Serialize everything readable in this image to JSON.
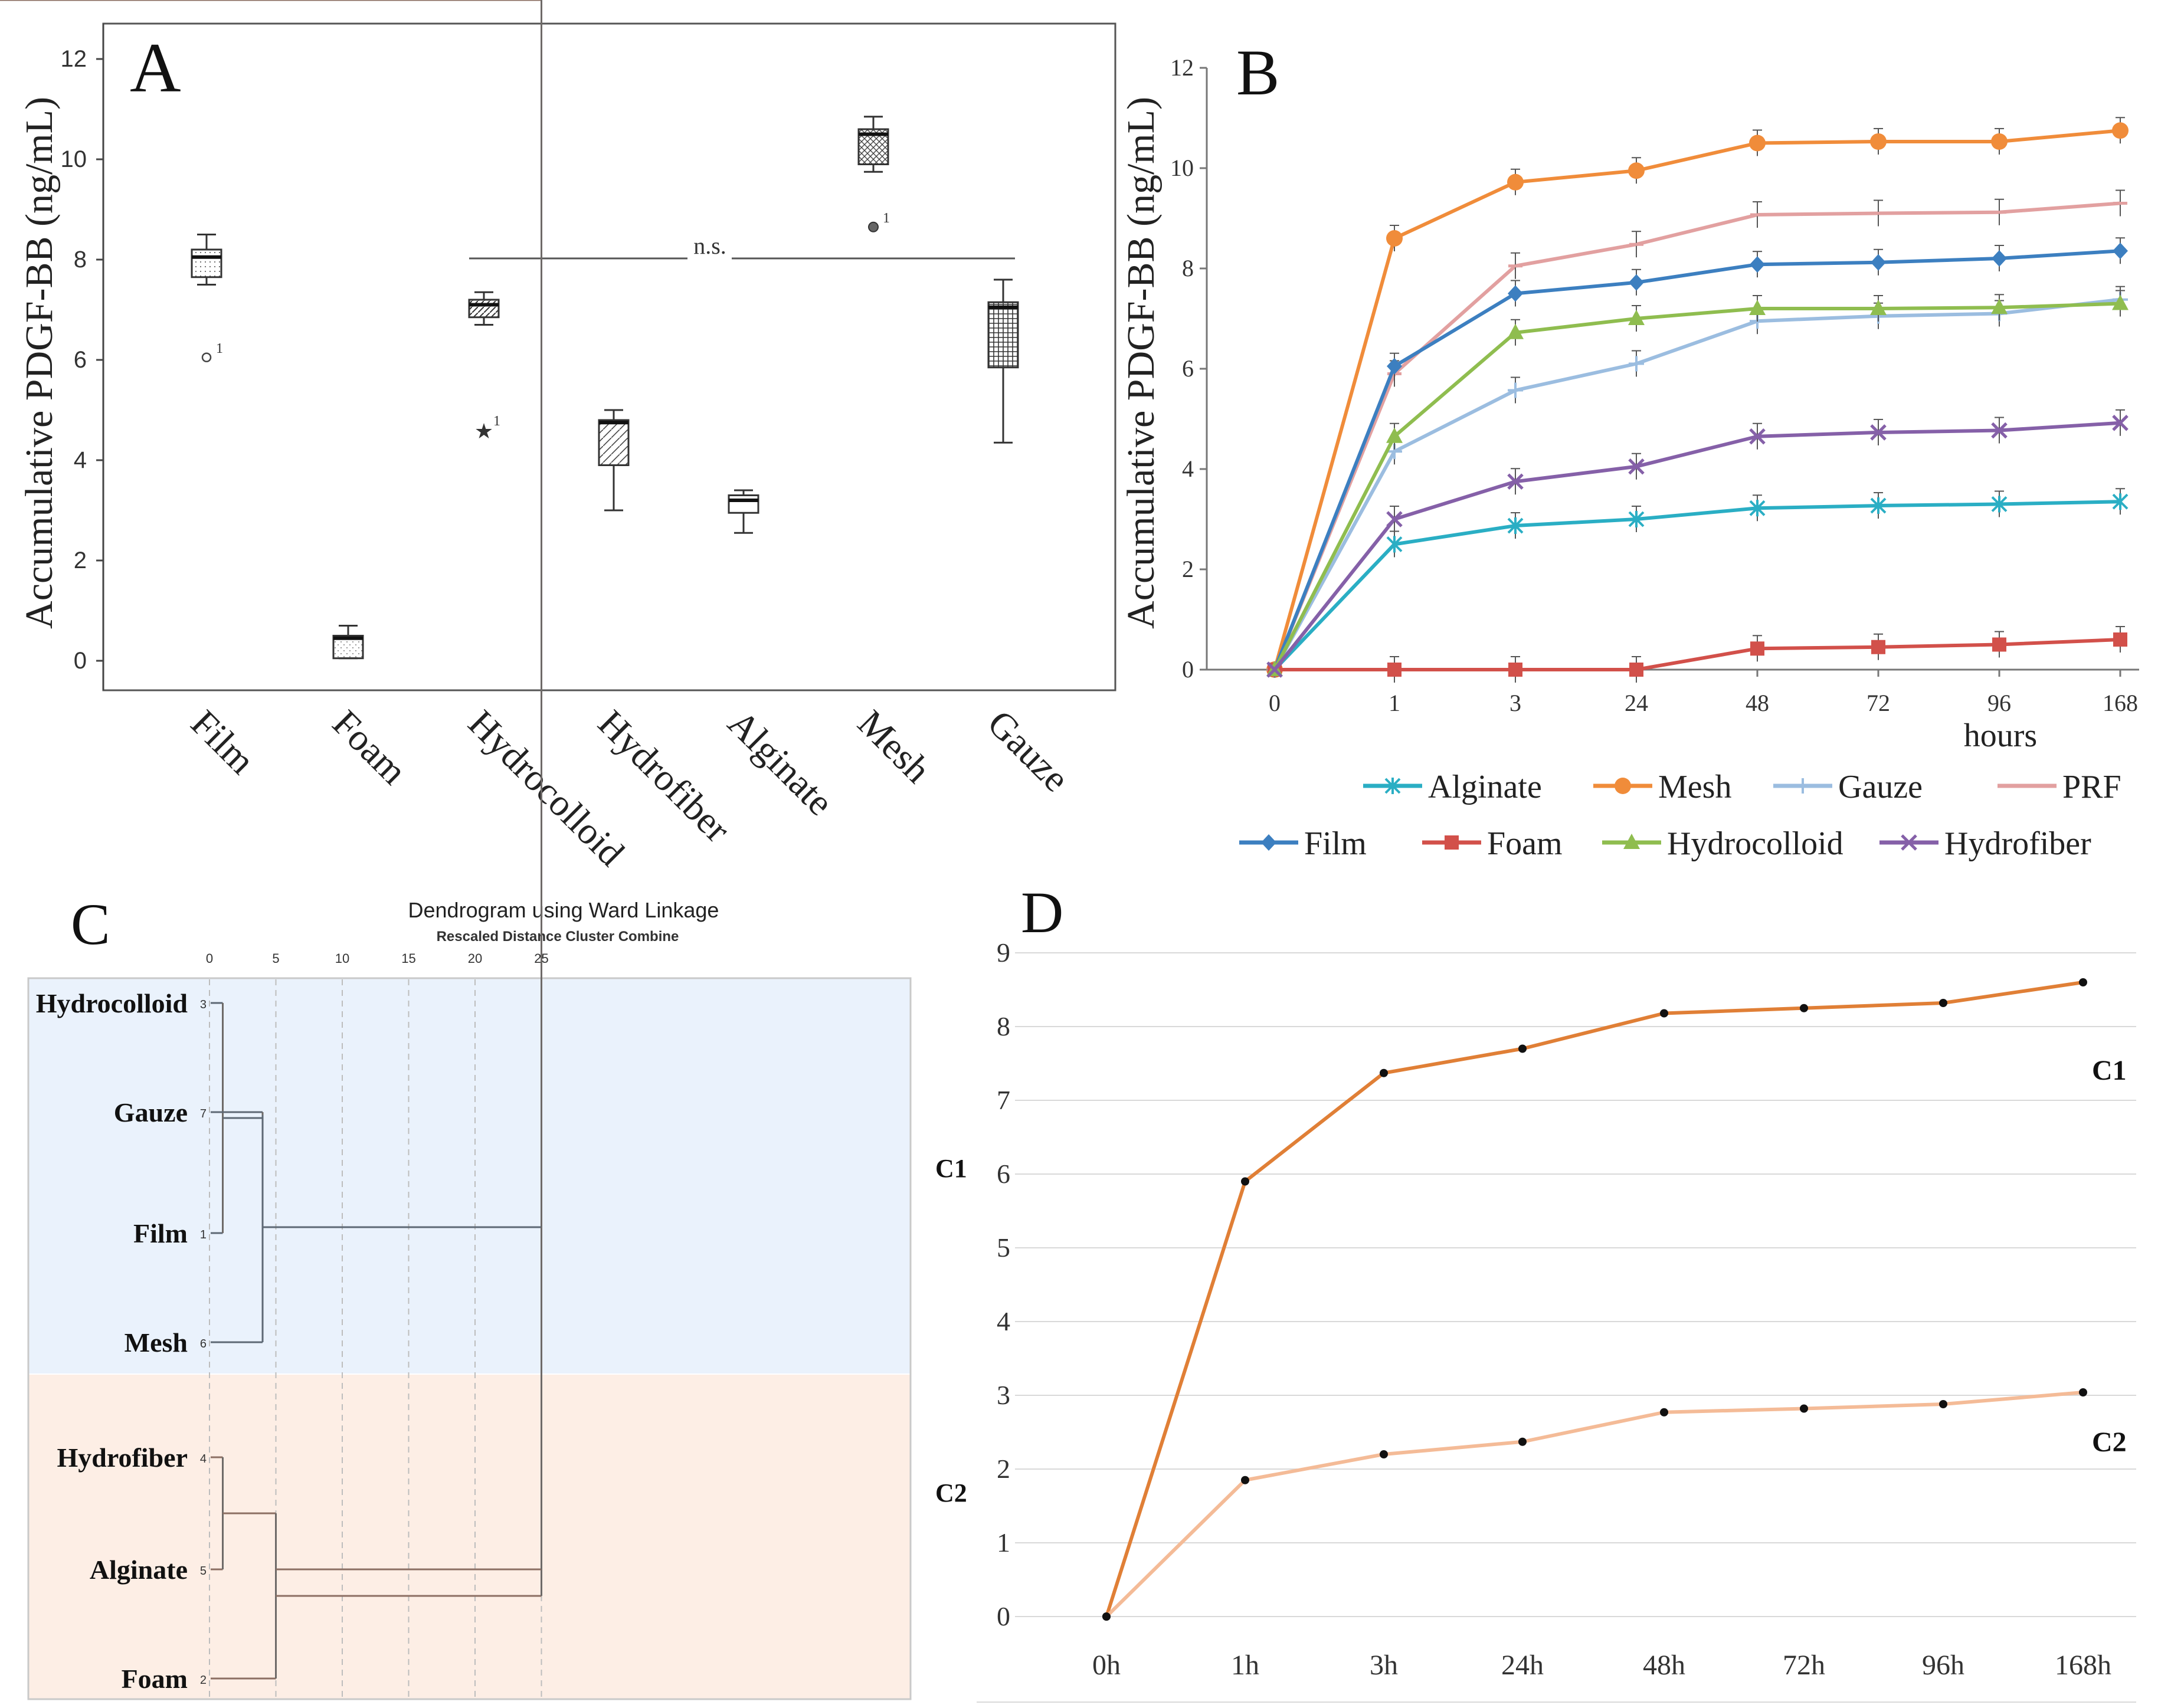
{
  "chart_data": [
    {
      "panel": "A",
      "type": "box",
      "ylabel": "Accumulative PDGF-BB (ng/mL)",
      "ylim": [
        -0.5,
        12.3
      ],
      "yticks": [
        0,
        2,
        4,
        6,
        8,
        10,
        12
      ],
      "annotation": "n.s.",
      "bracket_from": "Hydrocolloid",
      "bracket_to": "Gauze",
      "categories": [
        "Film",
        "Foam",
        "Hydrocolloid",
        "Hydrofiber",
        "Alginate",
        "Mesh",
        "Gauze"
      ],
      "boxes": [
        {
          "name": "Film",
          "min": 7.5,
          "q1": 7.65,
          "median": 8.05,
          "q3": 8.2,
          "max": 8.5,
          "outlier": 6.05,
          "outlier_label": "1",
          "outlier_marker": "circle"
        },
        {
          "name": "Foam",
          "min": 0.05,
          "q1": 0.05,
          "median": 0.45,
          "q3": 0.5,
          "max": 0.7,
          "outlier": null,
          "outlier_label": "",
          "outlier_marker": ""
        },
        {
          "name": "Hydrocolloid",
          "min": 6.7,
          "q1": 6.85,
          "median": 7.1,
          "q3": 7.2,
          "max": 7.35,
          "outlier": 4.6,
          "outlier_label": "1",
          "outlier_marker": "star"
        },
        {
          "name": "Hydrofiber",
          "min": 3.0,
          "q1": 3.9,
          "median": 4.75,
          "q3": 4.8,
          "max": 5.0,
          "outlier": null,
          "outlier_label": "",
          "outlier_marker": ""
        },
        {
          "name": "Alginate",
          "min": 2.55,
          "q1": 2.95,
          "median": 3.2,
          "q3": 3.3,
          "max": 3.4,
          "outlier": null,
          "outlier_label": "",
          "outlier_marker": ""
        },
        {
          "name": "Mesh",
          "min": 9.75,
          "q1": 9.9,
          "median": 10.5,
          "q3": 10.6,
          "max": 10.85,
          "outlier": 8.65,
          "outlier_label": "1",
          "outlier_marker": "dot"
        },
        {
          "name": "Gauze",
          "min": 4.35,
          "q1": 5.85,
          "median": 7.05,
          "q3": 7.15,
          "max": 7.6,
          "outlier": null,
          "outlier_label": "",
          "outlier_marker": ""
        }
      ]
    },
    {
      "panel": "B",
      "type": "line",
      "ylabel": "Accumulative PDGF-BB (ng/mL)",
      "xlabel": "hours",
      "ylim": [
        0,
        12
      ],
      "yticks": [
        0,
        2,
        4,
        6,
        8,
        10,
        12
      ],
      "categories": [
        "0",
        "1",
        "3",
        "24",
        "48",
        "72",
        "96",
        "168"
      ],
      "series": [
        {
          "name": "Alginate",
          "color": "#2aaec4",
          "marker": "asterisk",
          "values": [
            0,
            2.5,
            2.87,
            3.0,
            3.22,
            3.27,
            3.3,
            3.35
          ]
        },
        {
          "name": "Mesh",
          "color": "#f08c3a",
          "marker": "circle",
          "values": [
            0,
            8.6,
            9.72,
            9.95,
            10.5,
            10.53,
            10.53,
            10.75
          ]
        },
        {
          "name": "Gauze",
          "color": "#9bbde0",
          "marker": "plus",
          "values": [
            0,
            4.35,
            5.57,
            6.1,
            6.95,
            7.05,
            7.1,
            7.38
          ]
        },
        {
          "name": "PRF",
          "color": "#e2a0a0",
          "marker": "dash",
          "values": [
            0,
            5.9,
            8.05,
            8.48,
            9.07,
            9.1,
            9.12,
            9.3
          ]
        },
        {
          "name": "Film",
          "color": "#3c7fc0",
          "marker": "diamond",
          "values": [
            0,
            6.05,
            7.5,
            7.72,
            8.08,
            8.12,
            8.2,
            8.35
          ]
        },
        {
          "name": "Foam",
          "color": "#d2504a",
          "marker": "square",
          "values": [
            0,
            0,
            0,
            0,
            0.42,
            0.45,
            0.5,
            0.6
          ]
        },
        {
          "name": "Hydrocolloid",
          "color": "#8fbd4f",
          "marker": "triangle",
          "values": [
            0,
            4.65,
            6.72,
            7.0,
            7.2,
            7.2,
            7.22,
            7.3
          ]
        },
        {
          "name": "Hydrofiber",
          "color": "#8560a8",
          "marker": "cross",
          "values": [
            0,
            3.0,
            3.75,
            4.05,
            4.65,
            4.73,
            4.77,
            4.92
          ]
        }
      ]
    },
    {
      "panel": "C",
      "type": "dendrogram",
      "title": "Dendrogram using Ward Linkage",
      "subtitle": "Rescaled Distance Cluster Combine",
      "xticks": [
        0,
        5,
        10,
        15,
        20,
        25
      ],
      "leaves": [
        {
          "name": "Hydrocolloid",
          "id": "3"
        },
        {
          "name": "Gauze",
          "id": "7"
        },
        {
          "name": "Film",
          "id": "1"
        },
        {
          "name": "Mesh",
          "id": "6"
        },
        {
          "name": "Hydrofiber",
          "id": "4"
        },
        {
          "name": "Alginate",
          "id": "5"
        },
        {
          "name": "Foam",
          "id": "2"
        }
      ],
      "merges": [
        {
          "a": "Hydrocolloid",
          "b": "Film",
          "distance": 1.0
        },
        {
          "a": "Hydrofiber",
          "b": "Alginate",
          "distance": 1.0
        },
        {
          "a": "Gauze",
          "b": "Hydrocolloid+Film",
          "distance": 4.0
        },
        {
          "a": "Hydrofiber+Alginate",
          "b": "Foam",
          "distance": 5.0
        },
        {
          "a": "Cluster C1",
          "b": "Cluster C2",
          "distance": 25.0
        }
      ],
      "clusters": [
        {
          "label": "C1",
          "color": "#eaf2fc",
          "members": [
            "Hydrocolloid",
            "Gauze",
            "Film",
            "Mesh"
          ]
        },
        {
          "label": "C2",
          "color": "#fdeee5",
          "members": [
            "Hydrofiber",
            "Alginate",
            "Foam"
          ]
        }
      ]
    },
    {
      "panel": "D",
      "type": "line",
      "ylim": [
        0,
        9
      ],
      "yticks": [
        0,
        1,
        2,
        3,
        4,
        5,
        6,
        7,
        8,
        9
      ],
      "categories": [
        "0h",
        "1h",
        "3h",
        "24h",
        "48h",
        "72h",
        "96h",
        "168h"
      ],
      "series": [
        {
          "name": "C1",
          "color": "#e07f36",
          "values": [
            0,
            5.9,
            7.37,
            7.7,
            8.18,
            8.25,
            8.32,
            8.6
          ]
        },
        {
          "name": "C2",
          "color": "#f4bb97",
          "values": [
            0,
            1.85,
            2.2,
            2.37,
            2.77,
            2.82,
            2.88,
            3.04
          ]
        }
      ]
    }
  ]
}
